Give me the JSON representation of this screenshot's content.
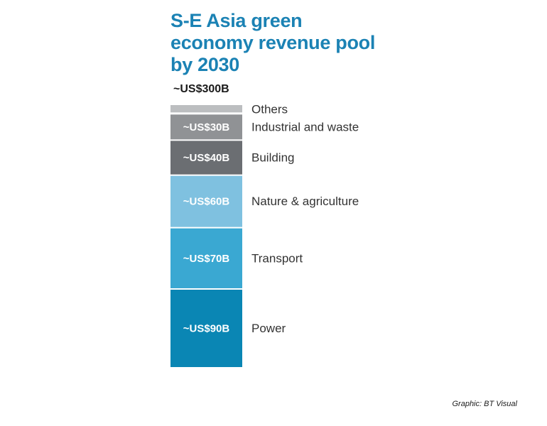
{
  "chart_data": {
    "type": "bar",
    "title": "S-E Asia green economy revenue pool by 2030",
    "total_label": "~US$300B",
    "ylim": [
      0,
      300
    ],
    "series": [
      {
        "name": "Power",
        "value": 90,
        "label": "~US$90B",
        "color": "#0a86b4"
      },
      {
        "name": "Transport",
        "value": 70,
        "label": "~US$70B",
        "color": "#3aa8d2"
      },
      {
        "name": "Nature & agriculture",
        "value": 60,
        "label": "~US$60B",
        "color": "#7fc1e0"
      },
      {
        "name": "Building",
        "value": 40,
        "label": "~US$40B",
        "color": "#6b6e72"
      },
      {
        "name": "Industrial and waste",
        "value": 30,
        "label": "~US$30B",
        "color": "#909295"
      },
      {
        "name": "Others",
        "value": 10,
        "label": "",
        "color": "#bcbec0"
      }
    ]
  },
  "credit": "Graphic: BT Visual"
}
